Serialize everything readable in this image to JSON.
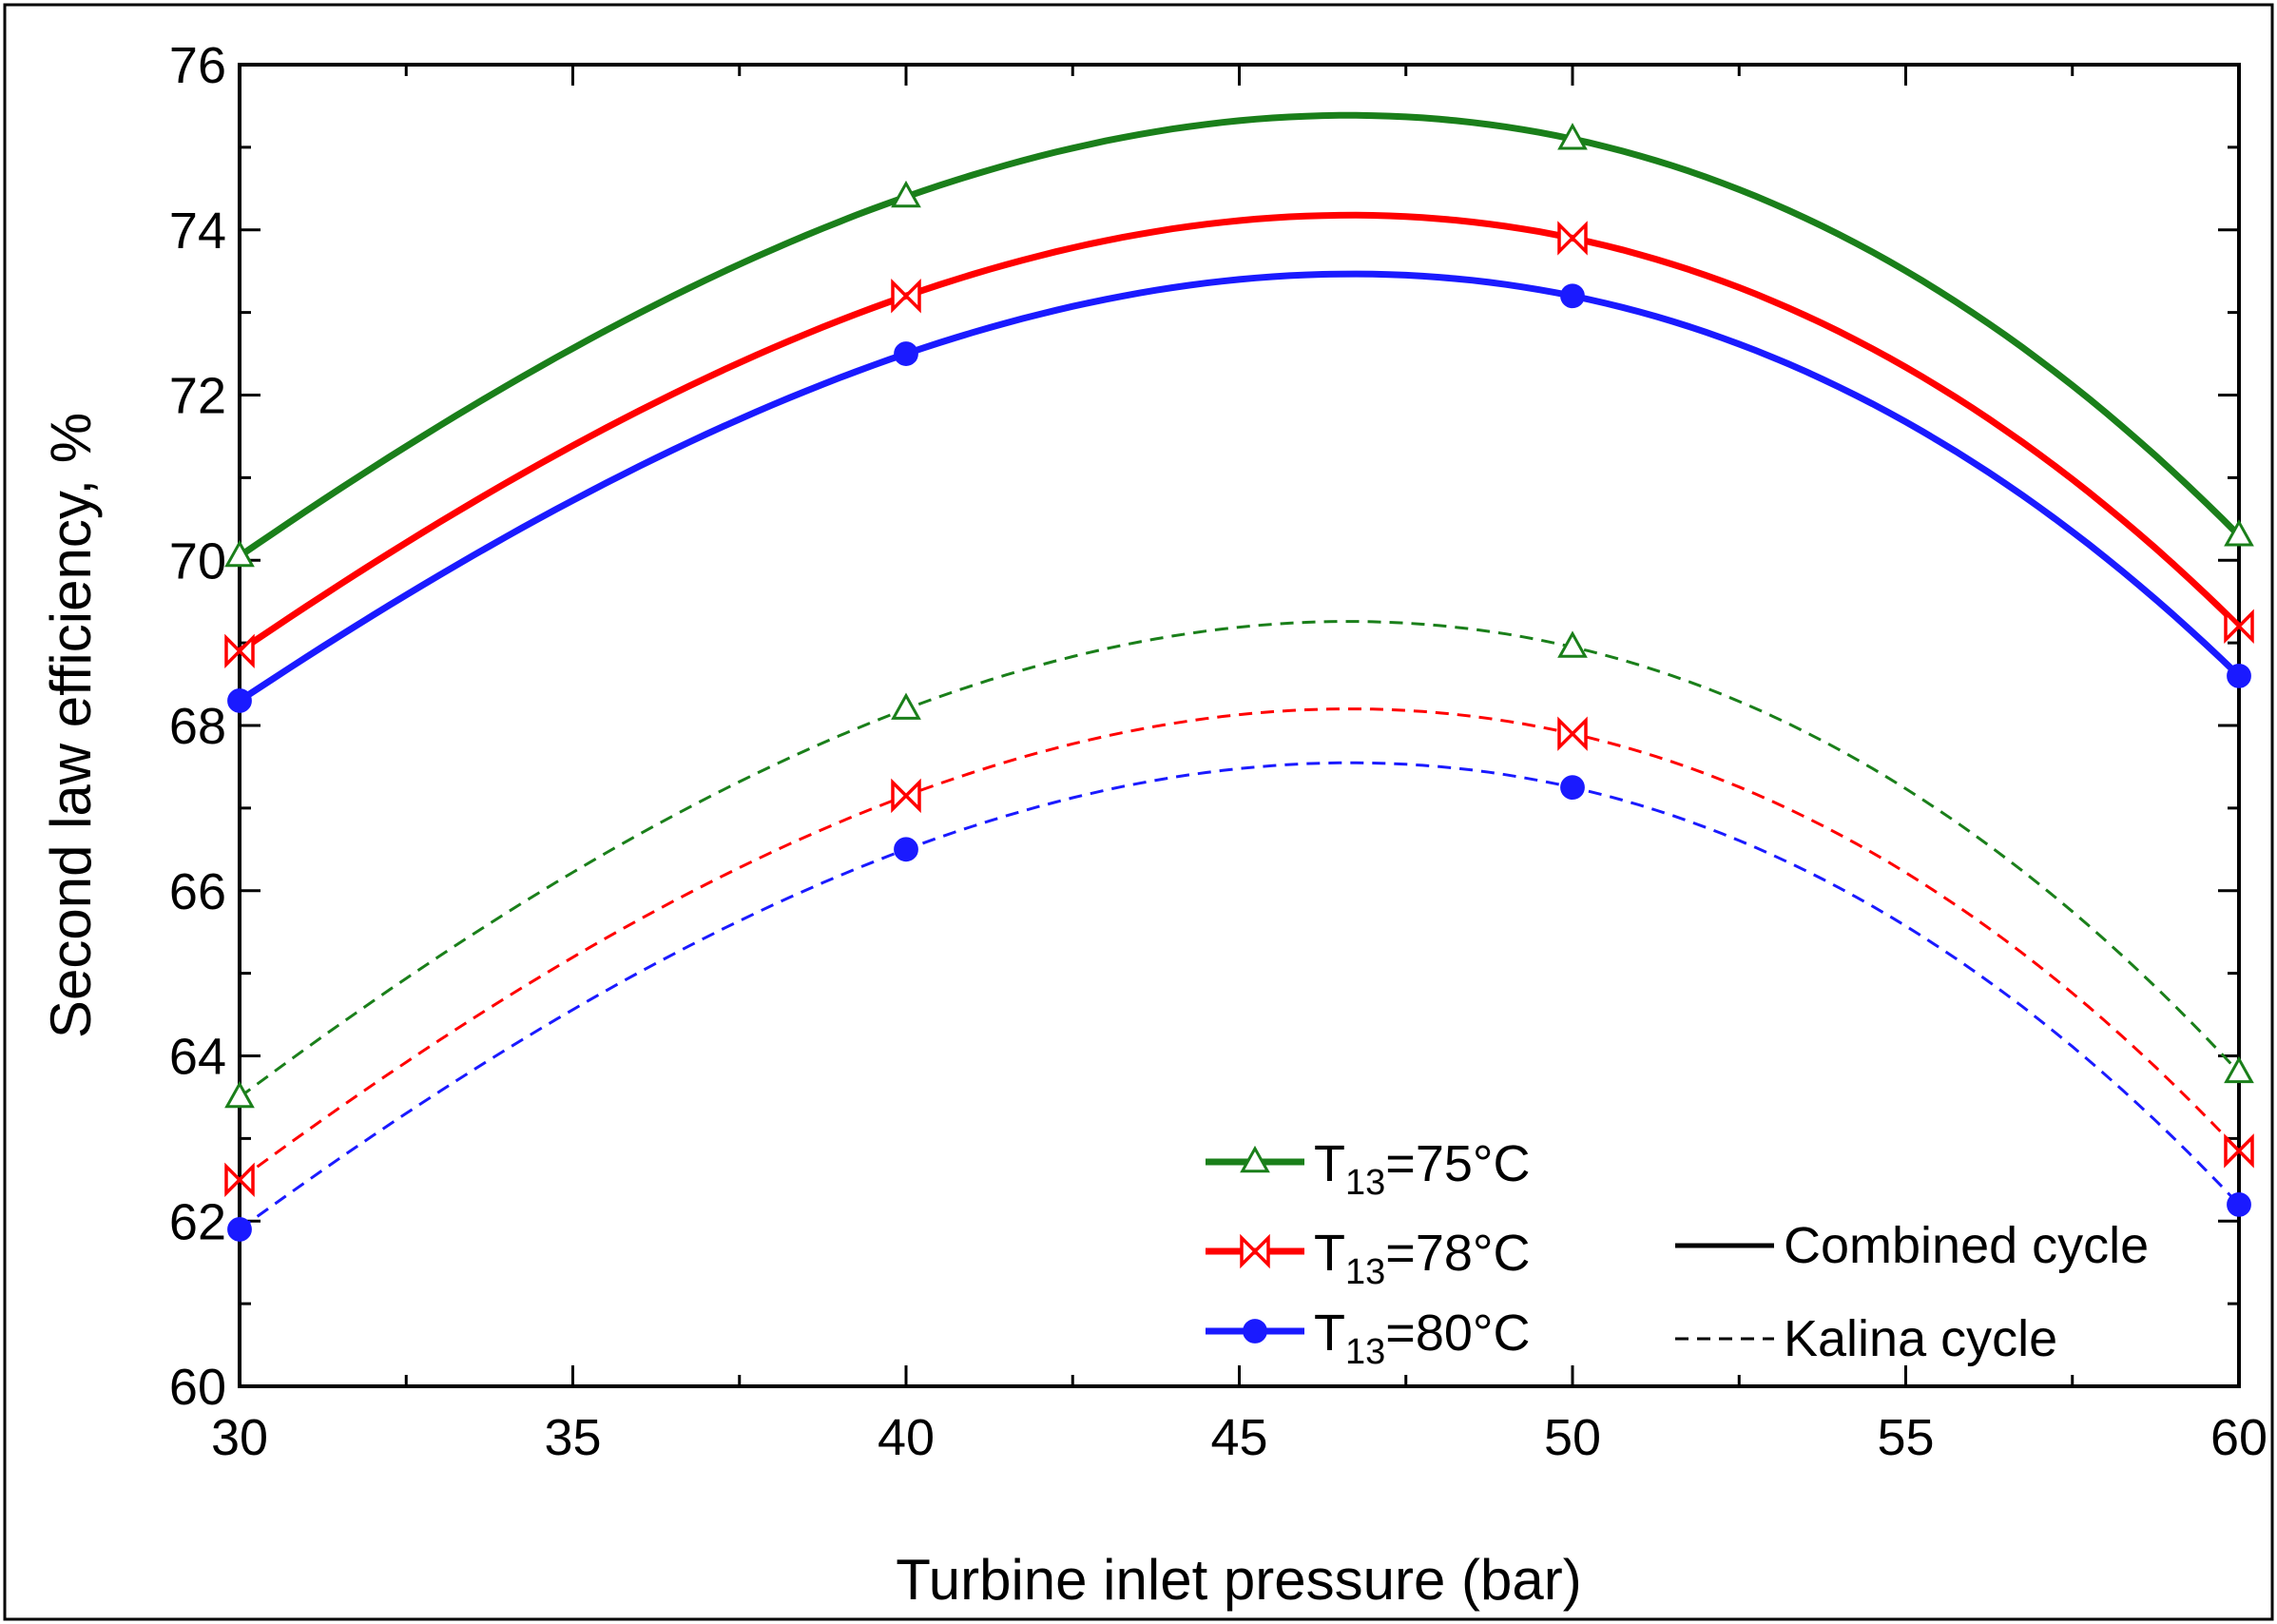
{
  "chart_data": {
    "type": "line",
    "xlabel": "Turbine inlet pressure (bar)",
    "ylabel": "Second law efficiency, %",
    "xlim": [
      30,
      60
    ],
    "ylim": [
      60,
      76
    ],
    "xticks": [
      30,
      35,
      40,
      45,
      50,
      55,
      60
    ],
    "yticks": [
      60,
      62,
      64,
      66,
      68,
      70,
      72,
      74,
      76
    ],
    "x": [
      30,
      40,
      50,
      60
    ],
    "series": [
      {
        "name": "T13=75°C Combined cycle",
        "group": "T75",
        "cycle": "combined",
        "color": "#1a7f1a",
        "marker": "triangle",
        "values": [
          70.05,
          74.4,
          75.1,
          70.3
        ]
      },
      {
        "name": "T13=78°C Combined cycle",
        "group": "T78",
        "cycle": "combined",
        "color": "#ff0000",
        "marker": "bowtie",
        "values": [
          68.9,
          73.2,
          73.9,
          69.2
        ]
      },
      {
        "name": "T13=80°C Combined cycle",
        "group": "T80",
        "cycle": "combined",
        "color": "#1a1aff",
        "marker": "circle",
        "values": [
          68.3,
          72.5,
          73.2,
          68.6
        ]
      },
      {
        "name": "T13=75°C Kalina cycle",
        "group": "T75",
        "cycle": "kalina",
        "color": "#1a7f1a",
        "marker": "triangle",
        "values": [
          63.5,
          68.2,
          68.95,
          63.8
        ]
      },
      {
        "name": "T13=78°C Kalina cycle",
        "group": "T78",
        "cycle": "kalina",
        "color": "#ff0000",
        "marker": "bowtie",
        "values": [
          62.5,
          67.15,
          67.9,
          62.85
        ]
      },
      {
        "name": "T13=80°C Kalina cycle",
        "group": "T80",
        "cycle": "kalina",
        "color": "#1a1aff",
        "marker": "circle",
        "values": [
          61.9,
          66.5,
          67.25,
          62.2
        ]
      }
    ],
    "legend": {
      "placement": "bottom-center",
      "temperatures": [
        {
          "prefix": "T",
          "sub": "13",
          "suffix": "=75°C",
          "color": "#1a7f1a",
          "marker": "triangle"
        },
        {
          "prefix": "T",
          "sub": "13",
          "suffix": "=78°C",
          "color": "#ff0000",
          "marker": "bowtie"
        },
        {
          "prefix": "T",
          "sub": "13",
          "suffix": "=80°C",
          "color": "#1a1aff",
          "marker": "circle"
        }
      ],
      "cycles": [
        {
          "label": "Combined cycle",
          "style": "solid"
        },
        {
          "label": "Kalina cycle",
          "style": "dashed"
        }
      ]
    }
  }
}
